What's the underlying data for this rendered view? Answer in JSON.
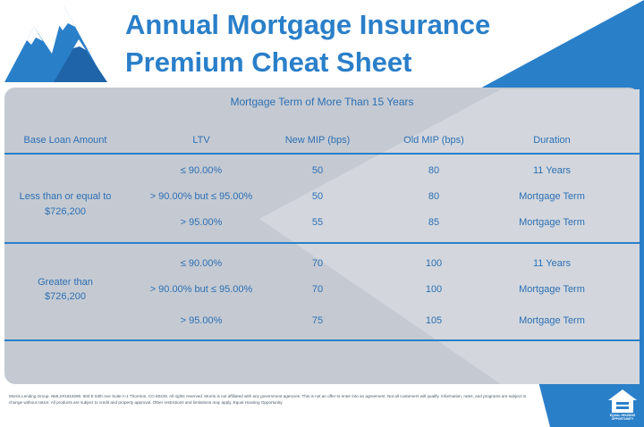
{
  "header": {
    "title_lines": [
      "Annual Mortgage Insurance",
      "Premium Cheat Sheet"
    ]
  },
  "table": {
    "caption": "Mortgage Term of More Than 15 Years",
    "columns": [
      "Base Loan Amount",
      "LTV",
      "New MIP (bps)",
      "Old MIP (bps)",
      "Duration"
    ],
    "groups": [
      {
        "label_lines": [
          "Less than or equal to",
          "$726,200"
        ],
        "rows": [
          [
            "≤ 90.00%",
            "50",
            "80",
            "11 Years"
          ],
          [
            "> 90.00% but ≤ 95.00%",
            "50",
            "80",
            "Mortgage Term"
          ],
          [
            "> 95.00%",
            "55",
            "85",
            "Mortgage Term"
          ]
        ]
      },
      {
        "label_lines": [
          "Greater than",
          "$726,200"
        ],
        "rows": [
          [
            "≤ 90.00%",
            "70",
            "100",
            "11 Years"
          ],
          [
            "> 90.00% but ≤ 95.00%",
            "70",
            "100",
            "Mortgage Term"
          ],
          [
            "> 95.00%",
            "75",
            "105",
            "Mortgage Term"
          ]
        ]
      }
    ]
  },
  "footer": {
    "disclaimer": "Morris Lending Group. NMLS#1818280. 600 E 84th Ave Suite A-1 Thornton, CO 80229. All rights reserved. Morris is not affiliated with any government agencies. This is not an offer to enter into an agreement. Not all customers will qualify. Information, rates, and programs are subject to change without notice. All products are subject to credit and property approval. Other restrictions and limitations may apply. Equal Housing Opportunity.",
    "logo_text": "EQUAL HOUSING OPPORTUNITY"
  }
}
